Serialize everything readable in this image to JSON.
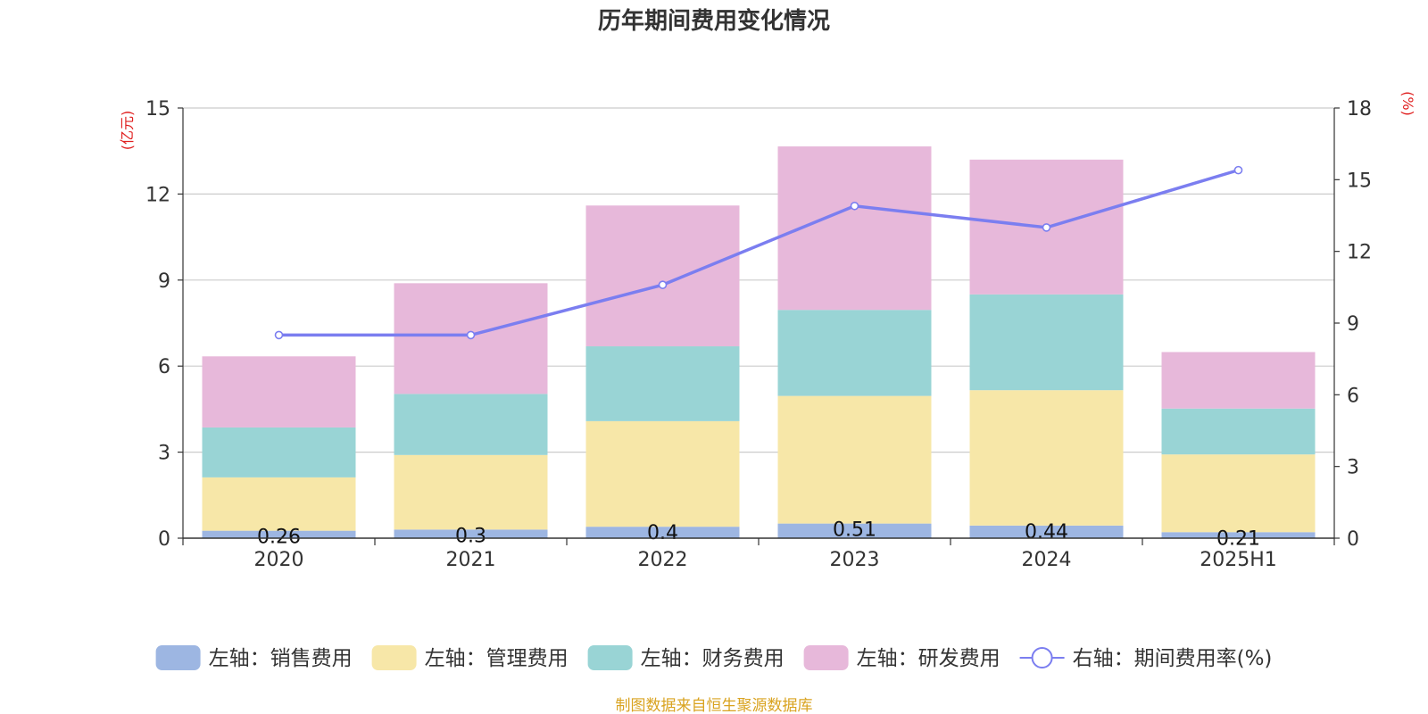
{
  "chart_data": {
    "type": "bar",
    "title": "历年期间费用变化情况",
    "categories": [
      "2020",
      "2021",
      "2022",
      "2023",
      "2024",
      "2025H1"
    ],
    "left_axis": {
      "unit_label": "(亿元)",
      "ylim": [
        0,
        15
      ],
      "ticks": [
        "0",
        "3",
        "6",
        "9",
        "12",
        "15"
      ]
    },
    "right_axis": {
      "unit_label": "(%)",
      "ylim": [
        0,
        18
      ],
      "ticks": [
        "0",
        "3",
        "6",
        "9",
        "12",
        "15",
        "18"
      ]
    },
    "series": [
      {
        "name": "左轴：销售费用",
        "kind": "bar",
        "stack": true,
        "color": "#9db6e2",
        "values": [
          0.26,
          0.3,
          0.4,
          0.51,
          0.44,
          0.21
        ],
        "labels": [
          "0.26",
          "0.3",
          "0.4",
          "0.51",
          "0.44",
          "0.21"
        ]
      },
      {
        "name": "左轴：管理费用",
        "kind": "bar",
        "stack": true,
        "color": "#f7e7a8",
        "values": [
          1.86,
          2.6,
          3.68,
          4.45,
          4.72,
          2.71
        ]
      },
      {
        "name": "左轴：财务费用",
        "kind": "bar",
        "stack": true,
        "color": "#99d4d5",
        "values": [
          1.74,
          2.13,
          2.61,
          3.0,
          3.34,
          1.6
        ]
      },
      {
        "name": "左轴：研发费用",
        "kind": "bar",
        "stack": true,
        "color": "#e7b8da",
        "values": [
          2.48,
          3.86,
          4.91,
          5.7,
          4.7,
          1.97
        ]
      },
      {
        "name": "右轴：期间费用率(%)",
        "kind": "line",
        "axis": "right",
        "color": "#7b7ef0",
        "values": [
          8.5,
          8.5,
          10.6,
          13.9,
          13.0,
          15.4
        ]
      }
    ],
    "grid": true,
    "legend_position": "bottom"
  },
  "footer": {
    "source": "制图数据来自恒生聚源数据库"
  },
  "colors": {
    "title": "#333333",
    "axis_unit": "#e02020",
    "tick": "#333333",
    "grid": "#cccccc",
    "source": "#d9a320"
  }
}
